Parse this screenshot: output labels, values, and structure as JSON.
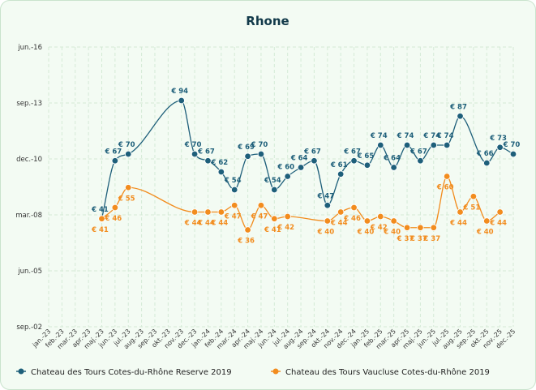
{
  "chart_data": {
    "type": "line",
    "title": "Rhone",
    "xlabel": "",
    "ylabel": "",
    "y_axis_labels": [
      "jun.-16",
      "sep.-13",
      "dec.-10",
      "mar.-08",
      "jun.-05",
      "sep.-02"
    ],
    "categories": [
      "jan.-23",
      "feb.-23",
      "mar.-23",
      "apr.-23",
      "maj.-23",
      "jun.-23",
      "jul.-23",
      "aug.-23",
      "sep.-23",
      "okt.-23",
      "nov.-23",
      "dec.-23",
      "jan.-24",
      "feb.-24",
      "mar.-24",
      "apr.-24",
      "maj.-24",
      "jun.-24",
      "jul.-24",
      "aug.-24",
      "sep.-24",
      "okt.-24",
      "nov.-24",
      "dec.-24",
      "jan.-25",
      "feb.-25",
      "mar.-25",
      "apr.-25",
      "maj.-25",
      "jun.-25",
      "jul.-25",
      "aug.-25",
      "sep.-25",
      "okt.-25",
      "nov.-25",
      "dec.-25"
    ],
    "grid": true,
    "legend_position": "bottom",
    "series": [
      {
        "name": "Chateau des Tours Cotes-du-Rhône Reserve 2019",
        "color": "#1e5f7a",
        "label_prefix": "€ ",
        "values": [
          null,
          null,
          null,
          null,
          41,
          67,
          70,
          null,
          null,
          null,
          94,
          70,
          67,
          62,
          54,
          69,
          70,
          54,
          60,
          64,
          67,
          47,
          61,
          67,
          65,
          74,
          64,
          74,
          67,
          74,
          74,
          87,
          null,
          66,
          73,
          70
        ]
      },
      {
        "name": "Chateau des Tours Vaucluse Cotes-du-Rhône 2019",
        "color": "#f28c1e",
        "label_prefix": "€ ",
        "values": [
          null,
          null,
          null,
          null,
          41,
          46,
          55,
          null,
          null,
          null,
          null,
          44,
          44,
          44,
          47,
          36,
          47,
          41,
          42,
          null,
          null,
          40,
          44,
          46,
          40,
          42,
          40,
          37,
          37,
          37,
          60,
          44,
          51,
          40,
          44,
          null
        ]
      }
    ]
  }
}
